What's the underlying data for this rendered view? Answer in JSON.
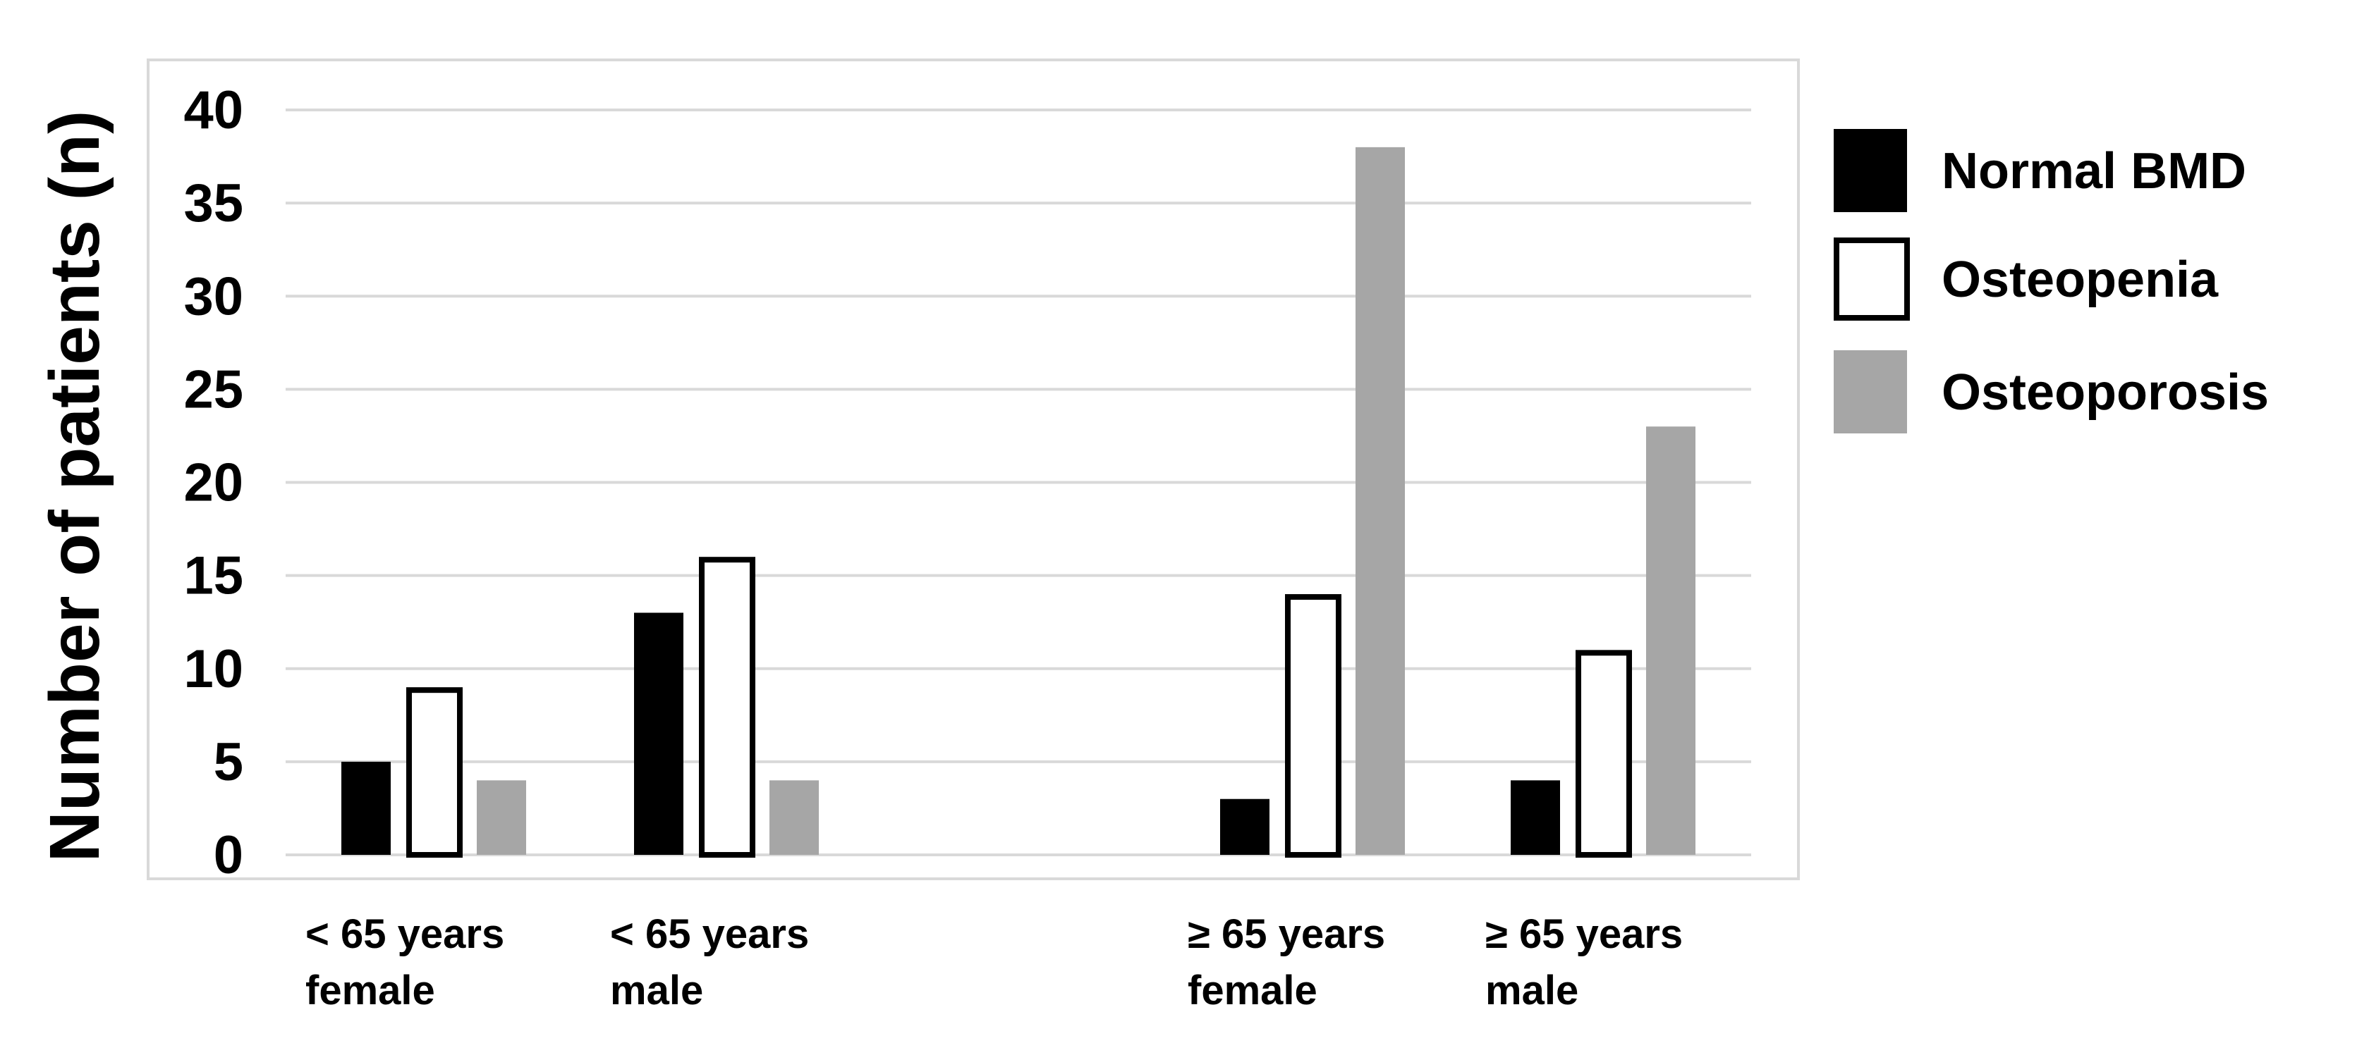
{
  "chart_data": {
    "type": "bar",
    "title": "",
    "xlabel": "",
    "ylabel": "Number of patients (n)",
    "ylim": [
      0,
      40
    ],
    "yticks": [
      0,
      5,
      10,
      15,
      20,
      25,
      30,
      35,
      40
    ],
    "grid": true,
    "legend_placement": "right",
    "categories": [
      [
        "< 65 years",
        "female"
      ],
      [
        "< 65 years",
        "male"
      ],
      [
        "≥  65 years",
        "female"
      ],
      [
        "≥  65 years",
        "male"
      ]
    ],
    "series": [
      {
        "name": "Normal BMD",
        "values": [
          5,
          13,
          3,
          4
        ],
        "fill": "#000000",
        "stroke": "#000000"
      },
      {
        "name": "Osteopenia",
        "values": [
          9,
          16,
          14,
          11
        ],
        "fill": "#ffffff",
        "stroke": "#000000"
      },
      {
        "name": "Osteoporosis",
        "values": [
          4,
          4,
          38,
          23
        ],
        "fill": "#a6a6a6",
        "stroke": "#a6a6a6"
      }
    ],
    "colors": {
      "grid": "#d9d9d9",
      "border": "#d9d9d9"
    }
  }
}
